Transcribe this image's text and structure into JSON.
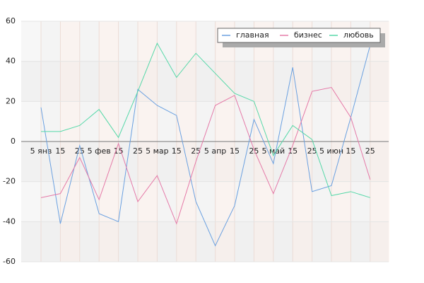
{
  "chart_data": {
    "type": "line",
    "categories": [
      "5 янв",
      "15",
      "25",
      "5 фев",
      "15",
      "25",
      "5 мар",
      "15",
      "25",
      "5 апр",
      "15",
      "25",
      "5 май",
      "15",
      "25",
      "5 июн",
      "15",
      "25"
    ],
    "series": [
      {
        "name": "главная",
        "color": "#6aa0e0",
        "values": [
          17,
          -41,
          -2,
          -36,
          -40,
          26,
          18,
          13,
          -30,
          -52,
          -32,
          11,
          -11,
          37,
          -25,
          -22,
          12,
          48
        ]
      },
      {
        "name": "бизнес",
        "color": "#e57aa8",
        "values": [
          -28,
          -26,
          -8,
          -29,
          -1,
          -30,
          -17,
          -41,
          -10,
          18,
          23,
          -4,
          -26,
          -2,
          25,
          27,
          12,
          -19
        ]
      },
      {
        "name": "любовь",
        "color": "#55d8a8",
        "values": [
          5,
          5,
          8,
          16,
          2,
          25,
          49,
          32,
          44,
          34,
          24,
          20,
          -7,
          8,
          1,
          -27,
          -25,
          -28
        ]
      }
    ],
    "ylim": [
      -60,
      60
    ],
    "yticks": [
      -60,
      -40,
      -20,
      0,
      20,
      40,
      60
    ],
    "grid": true,
    "legend": "top-right"
  }
}
